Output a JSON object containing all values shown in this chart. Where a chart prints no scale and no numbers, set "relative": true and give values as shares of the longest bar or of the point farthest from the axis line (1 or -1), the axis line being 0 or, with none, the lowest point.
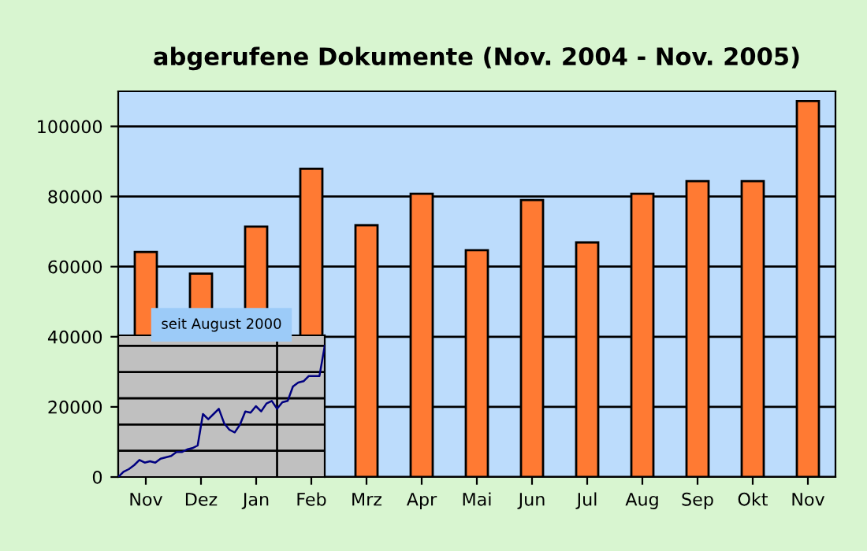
{
  "chart_data": [
    {
      "type": "bar",
      "title": "abgerufene Dokumente (Nov. 2004 - Nov. 2005)",
      "categories": [
        "Nov",
        "Dez",
        "Jan",
        "Feb",
        "Mrz",
        "Apr",
        "Mai",
        "Jun",
        "Jul",
        "Aug",
        "Sep",
        "Okt",
        "Nov"
      ],
      "values": [
        64200,
        58000,
        71400,
        87900,
        71800,
        80800,
        64700,
        79000,
        66900,
        80800,
        84400,
        84400,
        107200
      ],
      "color": "#ff7a33",
      "ylim": [
        0,
        110000
      ],
      "yticks": [
        0,
        20000,
        40000,
        60000,
        80000,
        100000
      ],
      "grid": "y"
    },
    {
      "type": "line",
      "title": "seit August 2000",
      "relative": true,
      "grid": true,
      "categories": [
        null,
        null,
        null,
        null,
        null,
        null,
        null,
        null,
        null,
        null,
        null,
        null,
        null,
        null,
        null,
        null,
        null,
        null,
        null,
        null,
        null,
        null,
        null,
        null,
        null,
        null,
        null,
        null,
        null,
        null,
        null,
        null,
        null,
        null,
        null,
        null,
        null,
        null,
        null,
        null
      ],
      "color": "#000080",
      "values": [
        0,
        0.04,
        0.06,
        0.09,
        0.13,
        0.11,
        0.12,
        0.11,
        0.14,
        0.15,
        0.16,
        0.19,
        0.19,
        0.21,
        0.22,
        0.24,
        0.48,
        0.44,
        0.48,
        0.52,
        0.41,
        0.36,
        0.34,
        0.4,
        0.5,
        0.49,
        0.54,
        0.5,
        0.56,
        0.58,
        0.52,
        0.57,
        0.58,
        0.69,
        0.72,
        0.73,
        0.77,
        0.77,
        0.77,
        1
      ]
    }
  ]
}
